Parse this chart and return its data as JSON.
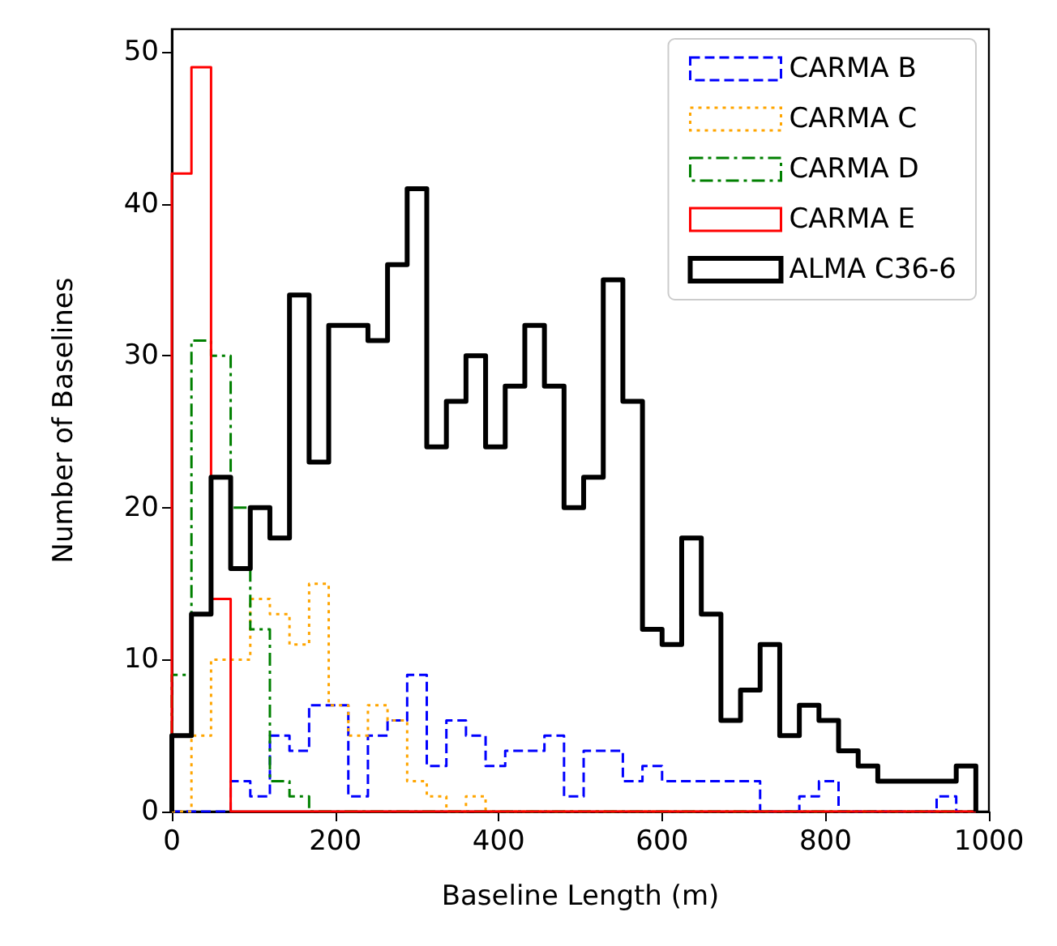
{
  "chart_data": {
    "type": "histogram",
    "xlabel": "Baseline Length (m)",
    "ylabel": "Number of Baselines",
    "xlim": [
      0,
      1000
    ],
    "xticks": [
      0,
      200,
      400,
      600,
      800,
      1000
    ],
    "ylim": [
      0,
      51.5
    ],
    "yticks": [
      0,
      10,
      20,
      30,
      40,
      50
    ],
    "grid": false,
    "legend": "top right",
    "bins": [
      0,
      24,
      48,
      72,
      96,
      120,
      144,
      168,
      192,
      216,
      240,
      264,
      288,
      312,
      336,
      360,
      384,
      408,
      432,
      456,
      480,
      504,
      528,
      552,
      576,
      600,
      624,
      648,
      672,
      696,
      720,
      744,
      768,
      792,
      816,
      840,
      864,
      888,
      912,
      936,
      960,
      984
    ],
    "series": [
      {
        "name": "CARMA B",
        "color": "#0000ff",
        "line_style": "dashed",
        "values": [
          0,
          0,
          0,
          2,
          1,
          5,
          4,
          7,
          7,
          1,
          5,
          6,
          9,
          3,
          6,
          5,
          3,
          4,
          4,
          5,
          1,
          4,
          4,
          2,
          3,
          2,
          2,
          2,
          2,
          2,
          0,
          0,
          1,
          2,
          0,
          0,
          0,
          0,
          0,
          1,
          0
        ]
      },
      {
        "name": "CARMA C",
        "color": "#ffa500",
        "line_style": "dotted",
        "values": [
          0,
          5,
          10,
          10,
          14,
          13,
          11,
          15,
          7,
          5,
          7,
          6,
          2,
          1,
          0,
          1,
          0,
          0,
          0,
          0,
          0,
          0,
          0,
          0,
          0,
          0,
          0,
          0,
          0,
          0,
          0,
          0,
          0,
          0,
          0,
          0,
          0,
          0,
          0,
          0,
          0
        ]
      },
      {
        "name": "CARMA D",
        "color": "#008000",
        "line_style": "dashdot",
        "values": [
          9,
          31,
          30,
          20,
          12,
          2,
          1,
          0,
          0,
          0,
          0,
          0,
          0,
          0,
          0,
          0,
          0,
          0,
          0,
          0,
          0,
          0,
          0,
          0,
          0,
          0,
          0,
          0,
          0,
          0,
          0,
          0,
          0,
          0,
          0,
          0,
          0,
          0,
          0,
          0,
          0
        ]
      },
      {
        "name": "CARMA E",
        "color": "#ff0000",
        "line_style": "solid",
        "values": [
          42,
          49,
          14,
          0,
          0,
          0,
          0,
          0,
          0,
          0,
          0,
          0,
          0,
          0,
          0,
          0,
          0,
          0,
          0,
          0,
          0,
          0,
          0,
          0,
          0,
          0,
          0,
          0,
          0,
          0,
          0,
          0,
          0,
          0,
          0,
          0,
          0,
          0,
          0,
          0,
          0
        ]
      },
      {
        "name": "ALMA C36-6",
        "color": "#000000",
        "line_style": "solid",
        "values": [
          5,
          13,
          22,
          16,
          20,
          18,
          34,
          23,
          32,
          32,
          31,
          36,
          41,
          24,
          27,
          30,
          24,
          28,
          32,
          28,
          20,
          22,
          35,
          27,
          12,
          11,
          18,
          13,
          6,
          8,
          11,
          5,
          7,
          6,
          4,
          3,
          2,
          2,
          2,
          2,
          3
        ]
      }
    ]
  }
}
